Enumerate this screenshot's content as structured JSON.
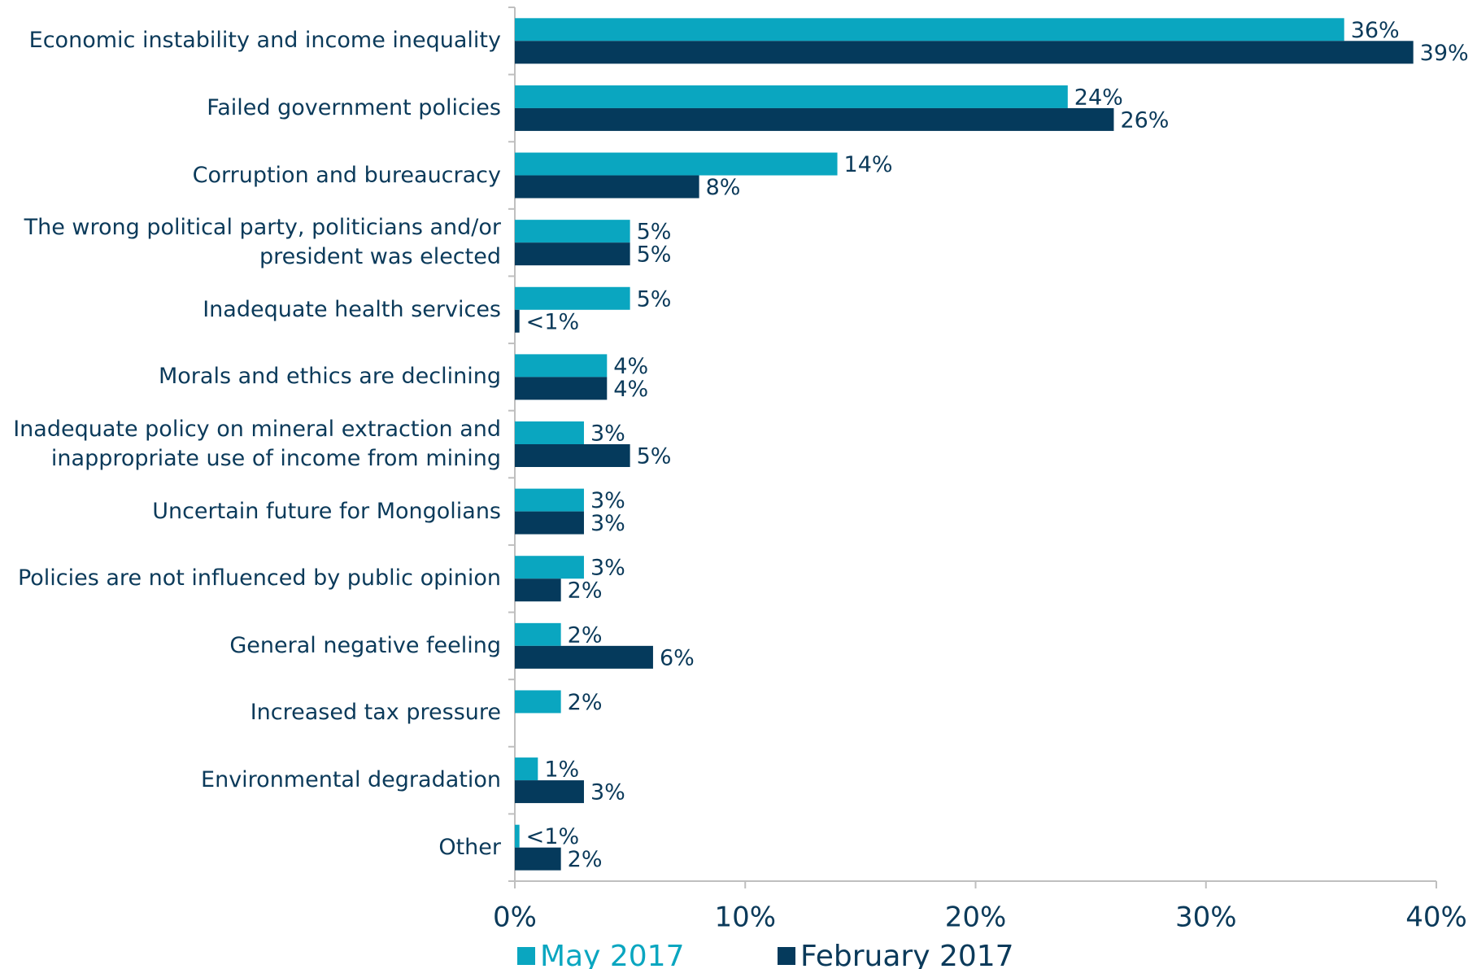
{
  "chart_data": {
    "type": "hbar",
    "categories": [
      "Economic instability and income inequality",
      "Failed government policies",
      "Corruption and bureaucracy",
      "The wrong political party, politicians and/or\npresident was elected",
      "Inadequate health services",
      "Morals and ethics are declining",
      "Inadequate policy on mineral extraction and\ninappropriate use of income from mining",
      "Uncertain future for Mongolians",
      "Policies are not influenced by public opinion",
      "General negative feeling",
      "Increased tax pressure",
      "Environmental degradation",
      "Other"
    ],
    "series": [
      {
        "name": "May 2017",
        "color": "#0aa6c0",
        "values": [
          36,
          24,
          14,
          5,
          5,
          4,
          3,
          3,
          3,
          2,
          2,
          1,
          0.2
        ],
        "value_labels": [
          "36%",
          "24%",
          "14%",
          "5%",
          "5%",
          "4%",
          "3%",
          "3%",
          "3%",
          "2%",
          "2%",
          "1%",
          "<1%"
        ]
      },
      {
        "name": "February 2017",
        "color": "#053a5c",
        "values": [
          39,
          26,
          8,
          5,
          0.2,
          4,
          5,
          3,
          2,
          6,
          null,
          3,
          2
        ],
        "value_labels": [
          "39%",
          "26%",
          "8%",
          "5%",
          "<1%",
          "4%",
          "5%",
          "3%",
          "2%",
          "6%",
          null,
          "3%",
          "2%"
        ]
      }
    ],
    "xlim": [
      0,
      40
    ],
    "xticks": [
      {
        "value": 0,
        "label": "0%"
      },
      {
        "value": 10,
        "label": "10%"
      },
      {
        "value": 20,
        "label": "20%"
      },
      {
        "value": 30,
        "label": "30%"
      },
      {
        "value": 40,
        "label": "40%"
      }
    ],
    "legend": "bottom"
  }
}
